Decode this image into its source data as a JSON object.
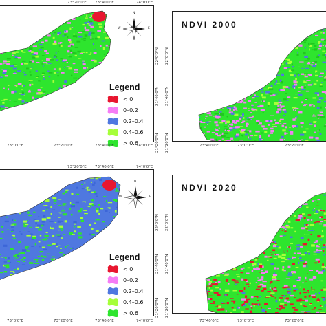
{
  "panels": [
    {
      "id": "top-left",
      "title": "",
      "x_ticks_top": [
        "73°20'0\"E",
        "73°40'0\"E",
        "74°0'0\"E"
      ],
      "x_ticks_bottom": [
        "73°0'0\"E",
        "73°20'0\"E",
        "73°40'0\"E",
        "74°0'0\"E"
      ],
      "y_ticks_right": [
        "22°0'0\"N",
        "21°40'0\"N",
        "21°20'0\"N"
      ],
      "has_legend": true,
      "has_compass": true,
      "palette": [
        "#2ee52e",
        "#21c61f",
        "#a6ff3a",
        "#f57df5",
        "#4f78e0"
      ]
    },
    {
      "id": "top-right",
      "title": "NDVI 2000",
      "x_ticks_top": [],
      "x_ticks_bottom": [
        "73°40'0\"E",
        "73°0'0\"E",
        "73°20'0\"E"
      ],
      "y_ticks_left": [
        "22°0'0\"N",
        "21°40'0\"N",
        "21°20'0\"N"
      ],
      "has_legend": false,
      "has_compass": false,
      "palette": [
        "#2ee52e",
        "#a6ff3a",
        "#f57df5",
        "#4f78e0",
        "#21c61f"
      ]
    },
    {
      "id": "bottom-left",
      "title": "",
      "x_ticks_top": [
        "73°20'0\"E",
        "73°40'0\"E",
        "74°0'0\"E"
      ],
      "x_ticks_bottom": [
        "73°0'0\"E",
        "73°20'0\"E",
        "73°40'0\"E",
        "74°0'0\"E"
      ],
      "y_ticks_right": [
        "22°0'0\"N",
        "21°40'0\"N",
        "21°20'0\"N"
      ],
      "has_legend": true,
      "has_compass": true,
      "palette": [
        "#4f78e0",
        "#4f78e0",
        "#3c66d8",
        "#2ee52e",
        "#a6ff3a"
      ]
    },
    {
      "id": "bottom-right",
      "title": "NDVI 2020",
      "x_ticks_top": [],
      "x_ticks_bottom": [
        "73°40'0\"E",
        "73°0'0\"E",
        "73°20'0\"E"
      ],
      "y_ticks_left": [
        "22°0'0\"N",
        "21°40'0\"N",
        "21°20'0\"N"
      ],
      "has_legend": false,
      "has_compass": false,
      "palette": [
        "#2ee52e",
        "#4f78e0",
        "#f57df5",
        "#e8162f",
        "#a6ff3a"
      ]
    }
  ],
  "legend": {
    "title": "Legend",
    "classes": [
      {
        "label": "< 0",
        "color": "#e8162f"
      },
      {
        "label": "0–0.2",
        "color": "#f57df5"
      },
      {
        "label": "0.2–0.4",
        "color": "#4f78e0"
      },
      {
        "label": "0.4–0.6",
        "color": "#a6ff3a"
      },
      {
        "label": "> 0.6",
        "color": "#2ee52e"
      }
    ]
  },
  "compass": {
    "n": "N",
    "s": "S",
    "e": "E",
    "w": "W"
  },
  "colors": {
    "red_patch": "#e8162f",
    "frame": "#222222"
  }
}
